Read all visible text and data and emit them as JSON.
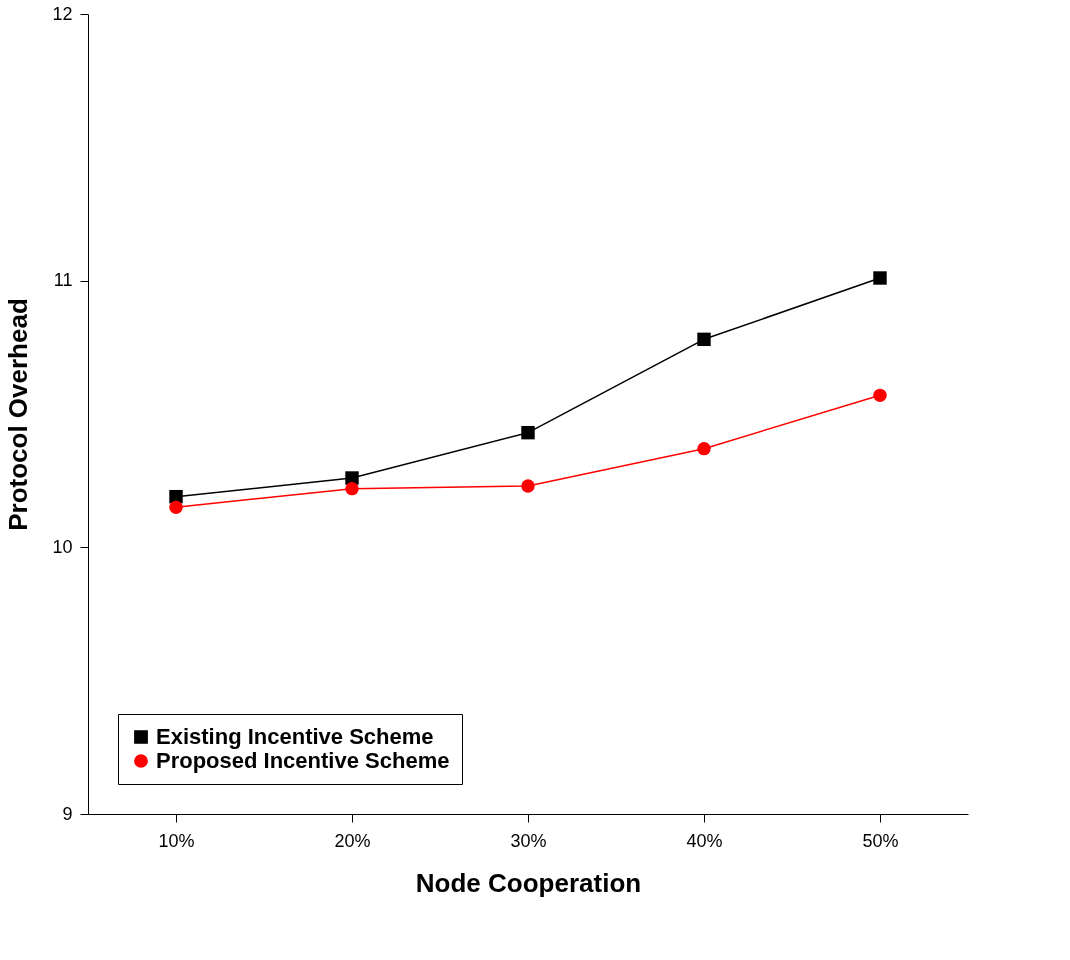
{
  "chart_data": {
    "type": "line",
    "xlabel": "Node Cooperation",
    "ylabel": "Protocol Overhead",
    "categories": [
      "10%",
      "20%",
      "30%",
      "40%",
      "50%"
    ],
    "series": [
      {
        "name": "Existing Incentive Scheme",
        "color": "#000000",
        "marker": "square",
        "values": [
          10.19,
          10.26,
          10.43,
          10.78,
          11.01
        ]
      },
      {
        "name": "Proposed Incentive Scheme",
        "color": "#ff0000",
        "marker": "circle",
        "values": [
          10.15,
          10.22,
          10.23,
          10.37,
          10.57
        ]
      }
    ],
    "ylim": [
      9,
      12
    ],
    "yticks": [
      9,
      10,
      11,
      12
    ],
    "grid": false,
    "legend": "bottom left",
    "line_style": "solid"
  }
}
